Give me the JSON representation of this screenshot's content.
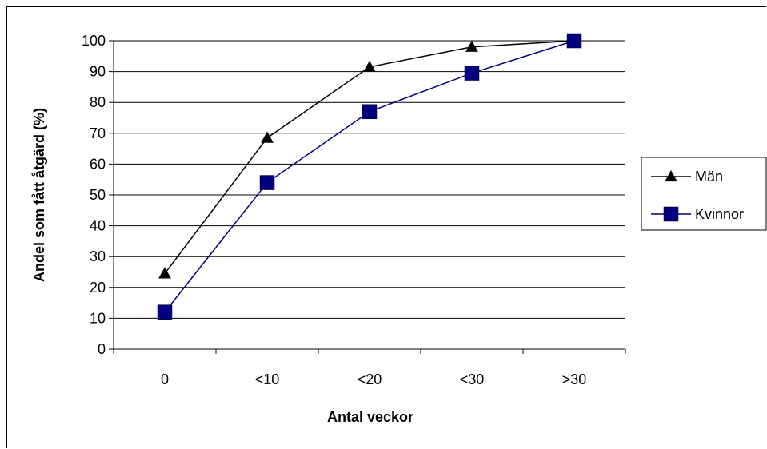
{
  "chart_data": {
    "type": "line",
    "categories": [
      "0",
      "<10",
      "<20",
      "<30",
      ">30"
    ],
    "series": [
      {
        "name": "Män",
        "values": [
          24.5,
          68.5,
          91.5,
          98,
          100
        ],
        "color": "#000000",
        "marker": "triangle"
      },
      {
        "name": "Kvinnor",
        "values": [
          12,
          54,
          77,
          89.5,
          100
        ],
        "color": "#000080",
        "marker": "square"
      }
    ],
    "xlabel": "Antal veckor",
    "ylabel": "Andel som fått åtgärd (%)",
    "ylim": [
      0,
      100
    ],
    "yticks": [
      "0",
      "10",
      "20",
      "30",
      "40",
      "50",
      "60",
      "70",
      "80",
      "90",
      "100"
    ],
    "grid": true,
    "legend_position": "right"
  }
}
